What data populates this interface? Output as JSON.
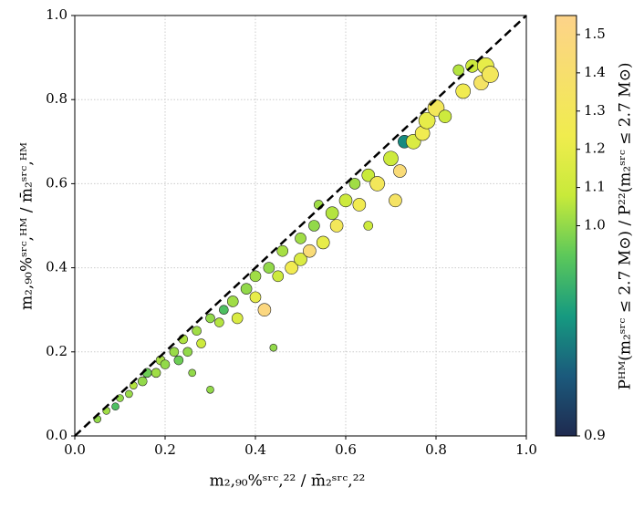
{
  "chart_data": {
    "type": "scatter",
    "xlabel": "m₂,₉₀%ˢʳᶜ,²² / m̄₂ˢʳᶜ,²²",
    "ylabel": "m₂,₉₀%ˢʳᶜ,ᴴᴹ / m̄₂ˢʳᶜ,ᴴᴹ",
    "colorbar_label": "Pᴴᴹ(m₂ˢʳᶜ ≤ 2.7 M⊙) / P²²(m₂ˢʳᶜ ≤ 2.7 M⊙)",
    "xlim": [
      0,
      1
    ],
    "ylim": [
      0,
      1
    ],
    "xticks": [
      {
        "value": 0,
        "label": "0.0"
      },
      0.2,
      0.4,
      0.6,
      0.8,
      {
        "value": 1,
        "label": "1.0"
      }
    ],
    "yticks": [
      {
        "value": 0,
        "label": "0.0"
      },
      0.2,
      0.4,
      0.6,
      0.8,
      {
        "value": 1,
        "label": "1.0"
      }
    ],
    "clim": [
      0.9,
      1.55
    ],
    "ccenter": 1.0,
    "cticks": [
      0.9,
      {
        "value": 1,
        "label": "1.0"
      },
      1.1,
      1.2,
      1.3,
      1.4,
      1.5
    ],
    "colormap": [
      "#1f2a4f",
      "#1b5a7c",
      "#169a80",
      "#5cc85a",
      "#c8ea3a",
      "#f0ec4e",
      "#f7df6c",
      "#fdd38a"
    ],
    "grid": true,
    "diagonal": true,
    "x": [
      0.05,
      0.07,
      0.09,
      0.1,
      0.12,
      0.13,
      0.15,
      0.16,
      0.18,
      0.19,
      0.2,
      0.22,
      0.23,
      0.24,
      0.25,
      0.26,
      0.27,
      0.28,
      0.3,
      0.3,
      0.32,
      0.33,
      0.35,
      0.36,
      0.38,
      0.4,
      0.4,
      0.42,
      0.43,
      0.44,
      0.45,
      0.46,
      0.48,
      0.5,
      0.5,
      0.52,
      0.53,
      0.54,
      0.55,
      0.57,
      0.58,
      0.6,
      0.62,
      0.63,
      0.65,
      0.65,
      0.67,
      0.7,
      0.71,
      0.72,
      0.73,
      0.75,
      0.77,
      0.78,
      0.8,
      0.82,
      0.85,
      0.86,
      0.88,
      0.9,
      0.91,
      0.92
    ],
    "y": [
      0.04,
      0.06,
      0.07,
      0.09,
      0.1,
      0.12,
      0.13,
      0.15,
      0.15,
      0.18,
      0.17,
      0.2,
      0.18,
      0.23,
      0.2,
      0.15,
      0.25,
      0.22,
      0.28,
      0.11,
      0.27,
      0.3,
      0.32,
      0.28,
      0.35,
      0.33,
      0.38,
      0.3,
      0.4,
      0.21,
      0.38,
      0.44,
      0.4,
      0.47,
      0.42,
      0.44,
      0.5,
      0.55,
      0.46,
      0.53,
      0.5,
      0.56,
      0.6,
      0.55,
      0.5,
      0.62,
      0.6,
      0.66,
      0.56,
      0.63,
      0.7,
      0.7,
      0.72,
      0.75,
      0.78,
      0.76,
      0.87,
      0.82,
      0.88,
      0.84,
      0.88,
      0.86
    ],
    "c": [
      1.0,
      1.02,
      0.98,
      1.0,
      1.01,
      1.05,
      1.0,
      0.99,
      1.02,
      1.03,
      1.0,
      1.01,
      0.99,
      1.04,
      1.0,
      1.0,
      1.02,
      1.1,
      1.0,
      1.0,
      1.05,
      0.98,
      1.02,
      1.15,
      1.0,
      1.2,
      1.02,
      1.5,
      1.0,
      1.0,
      1.1,
      1.03,
      1.25,
      1.02,
      1.15,
      1.45,
      1.0,
      1.02,
      1.2,
      1.05,
      1.3,
      1.1,
      1.02,
      1.25,
      1.1,
      1.08,
      1.3,
      1.1,
      1.35,
      1.45,
      0.95,
      1.15,
      1.25,
      1.2,
      1.3,
      1.1,
      1.05,
      1.25,
      1.1,
      1.35,
      1.2,
      1.3
    ],
    "s": [
      4,
      4,
      4,
      4,
      4,
      4,
      5,
      5,
      5,
      5,
      5,
      5,
      5,
      5,
      5,
      4,
      5,
      5,
      5,
      4,
      5,
      5,
      6,
      6,
      6,
      6,
      6,
      7,
      6,
      4,
      6,
      6,
      7,
      6,
      7,
      7,
      6,
      5,
      7,
      7,
      7,
      7,
      6,
      7,
      5,
      7,
      8,
      8,
      7,
      7,
      7,
      8,
      8,
      9,
      9,
      7,
      6,
      8,
      7,
      8,
      9,
      9
    ]
  }
}
